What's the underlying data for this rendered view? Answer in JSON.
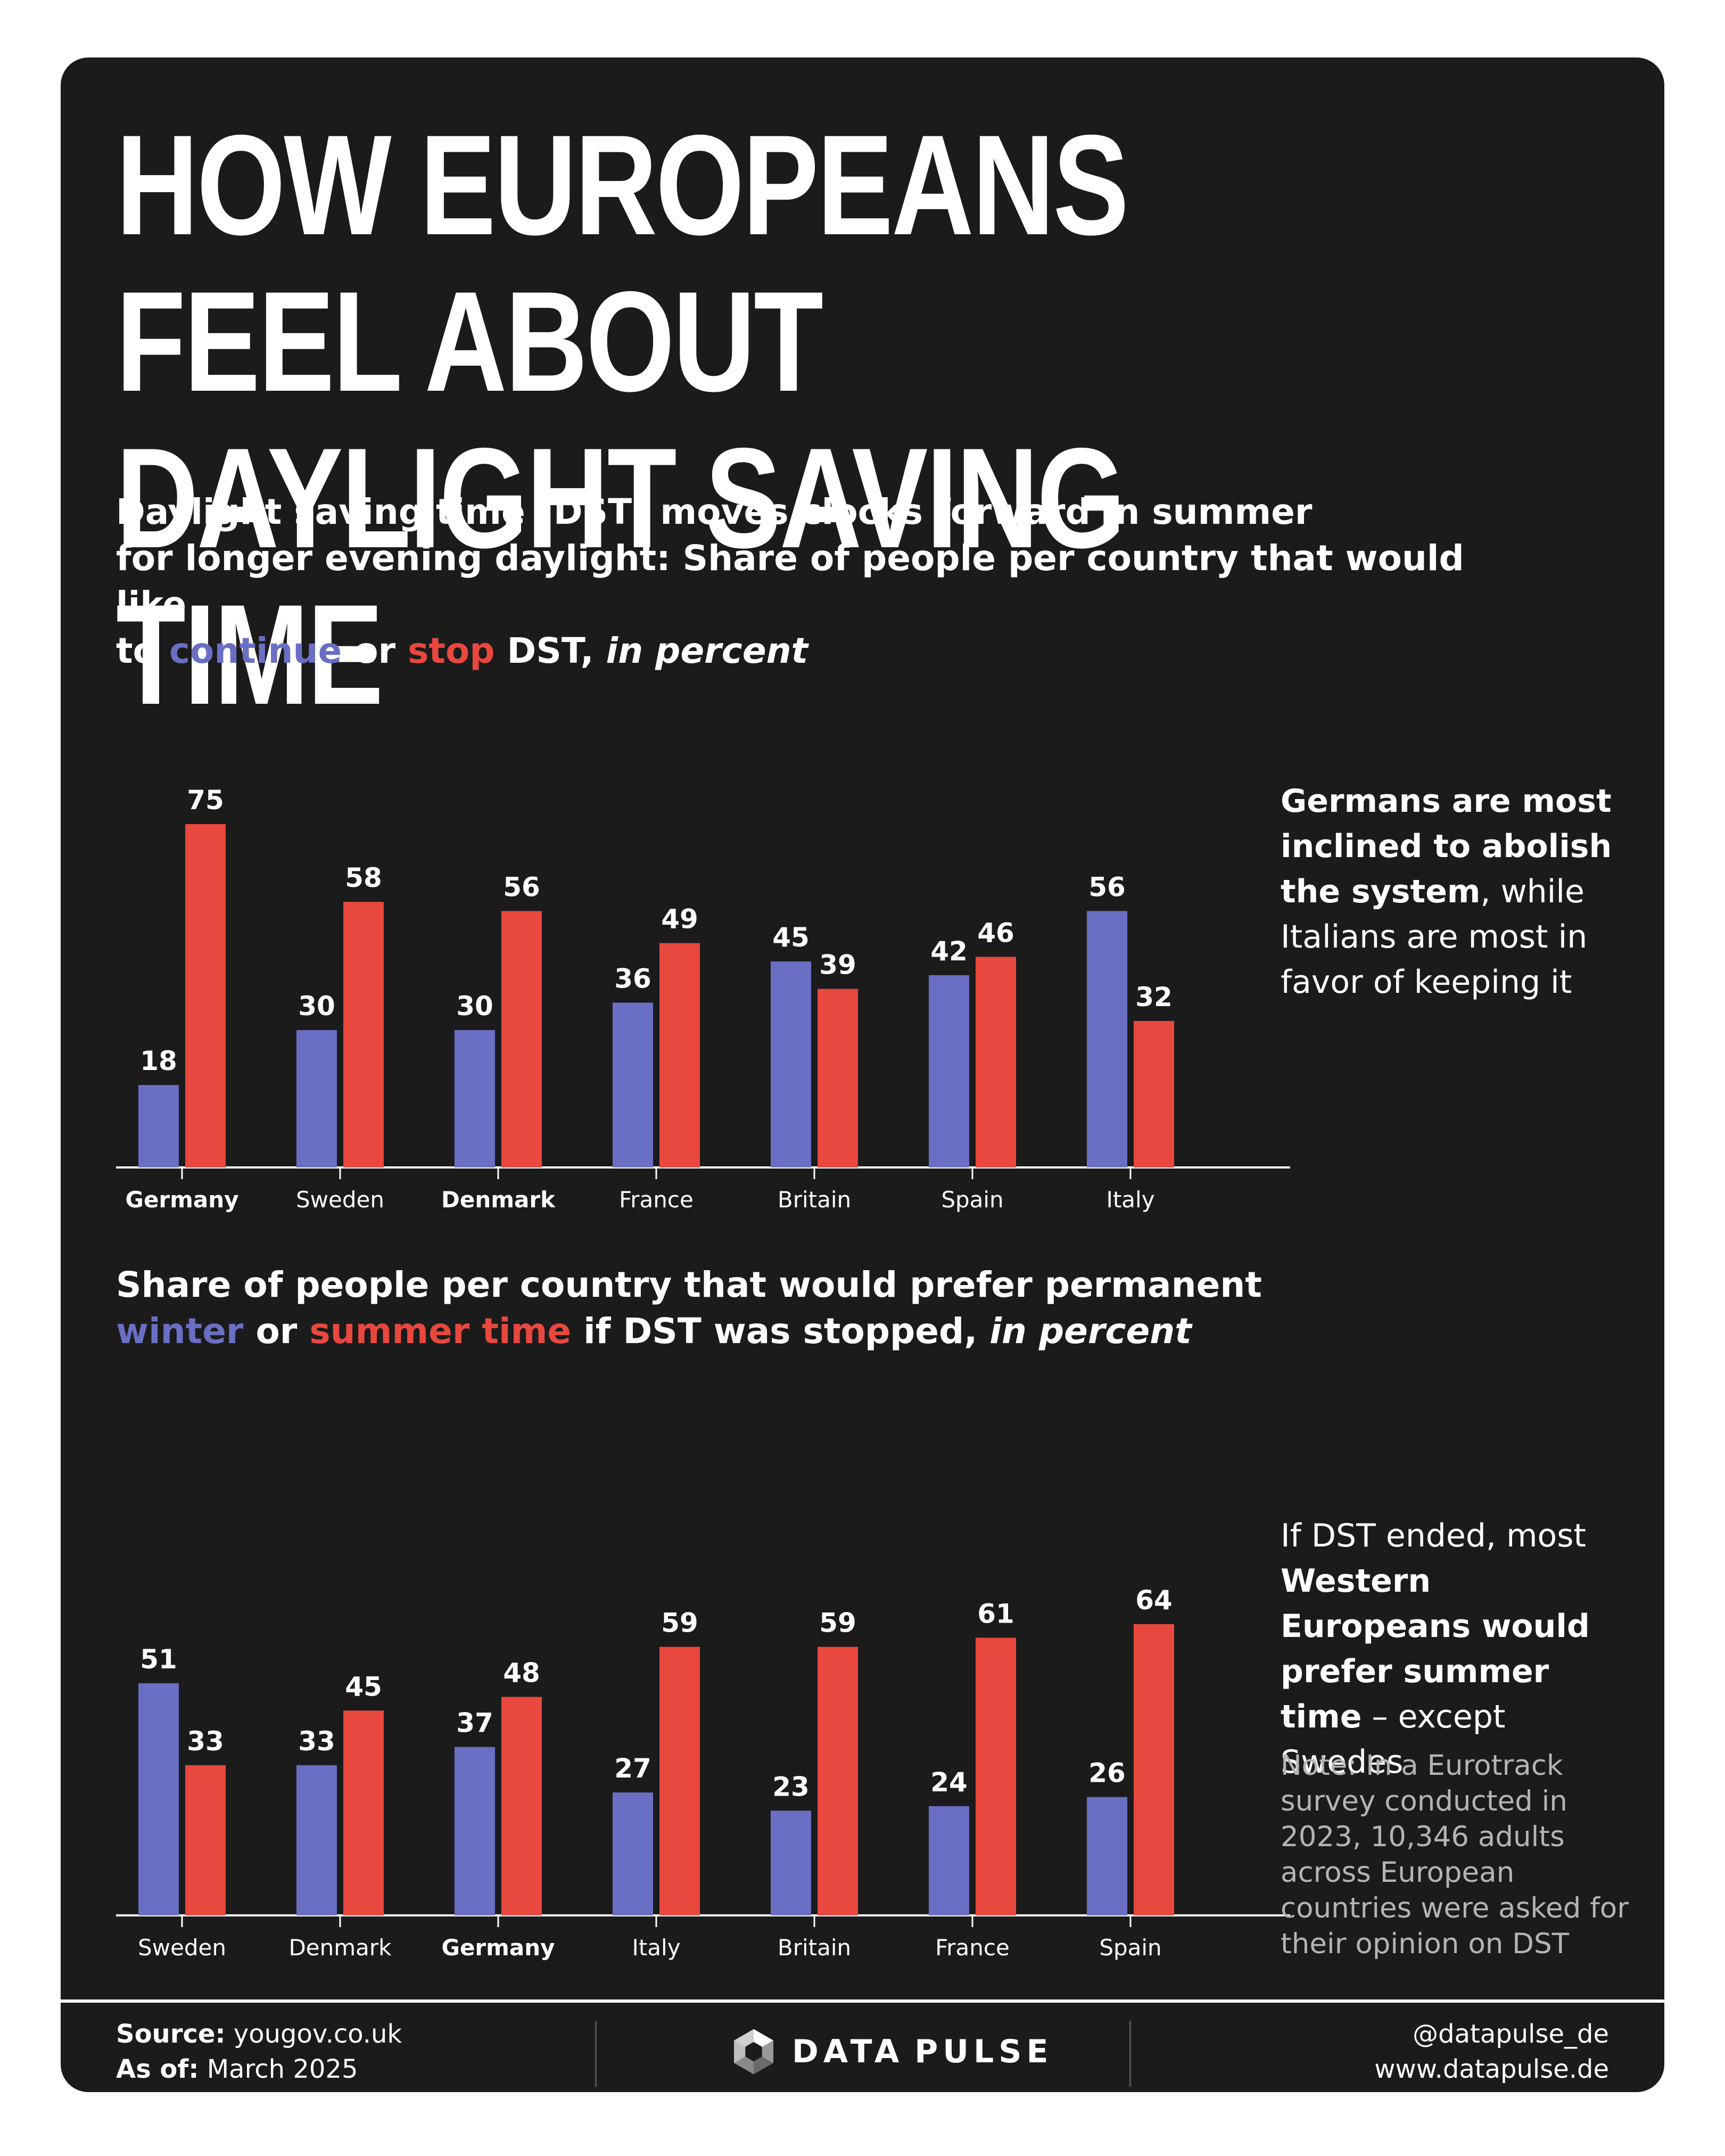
{
  "title": "How Europeans feel about daylight saving time",
  "chart1": {
    "subtitle": {
      "line1": "Daylight saving time (DST) moves clocks forward in summer",
      "line2": "for longer evening daylight: Share of people per country that would like",
      "to": "to",
      "continue": "continue",
      "or": "or",
      "stop": "stop",
      "dst": "DST,",
      "unit": "in percent"
    },
    "side": {
      "bold": "Germans are most inclined to abolish the system",
      "rest": ", while Italians are most in favor of keeping it"
    }
  },
  "chart2": {
    "subtitle": {
      "line1": "Share of people per country that would prefer permanent",
      "winter": "winter",
      "or": "or",
      "summer": "summer time",
      "rest": "if DST was stopped,",
      "unit": "in percent"
    },
    "side": {
      "pre": "If DST ended, most ",
      "bold1": "Western Europeans would prefer summer time",
      "rest": " – except Swedes"
    },
    "note": "Note: In a Eurotrack survey conducted in 2023, 10,346 adults across European countries were asked for their opinion on DST"
  },
  "footer": {
    "source_label": "Source:",
    "source": "yougov.co.uk",
    "asof_label": "As of:",
    "asof": "March 2025",
    "logo_word1": "DATA",
    "logo_word2": "PULSE",
    "handle": "@datapulse_de",
    "website": "www.datapulse.de"
  },
  "colors": {
    "blue": "#6a6fc4",
    "red": "#e8483e",
    "background": "#1b1b1c"
  },
  "chart_data": [
    {
      "type": "bar",
      "categories": [
        "Germany",
        "Sweden",
        "Denmark",
        "France",
        "Britain",
        "Spain",
        "Italy"
      ],
      "bold_categories": [
        "Germany",
        "Denmark"
      ],
      "series": [
        {
          "name": "continue",
          "color": "#6a6fc4",
          "values": [
            18,
            30,
            30,
            36,
            45,
            42,
            56
          ]
        },
        {
          "name": "stop",
          "color": "#e8483e",
          "values": [
            75,
            58,
            56,
            49,
            39,
            46,
            32
          ]
        }
      ],
      "ylim": [
        0,
        80
      ],
      "grid": false,
      "legend": "in subtitle"
    },
    {
      "type": "bar",
      "categories": [
        "Sweden",
        "Denmark",
        "Germany",
        "Italy",
        "Britain",
        "France",
        "Spain"
      ],
      "bold_categories": [
        "Germany"
      ],
      "series": [
        {
          "name": "winter",
          "color": "#6a6fc4",
          "values": [
            51,
            33,
            37,
            27,
            23,
            24,
            26
          ]
        },
        {
          "name": "summer time",
          "color": "#e8483e",
          "values": [
            33,
            45,
            48,
            59,
            59,
            61,
            64
          ]
        }
      ],
      "ylim": [
        0,
        70
      ],
      "grid": false,
      "legend": "in subtitle"
    }
  ]
}
